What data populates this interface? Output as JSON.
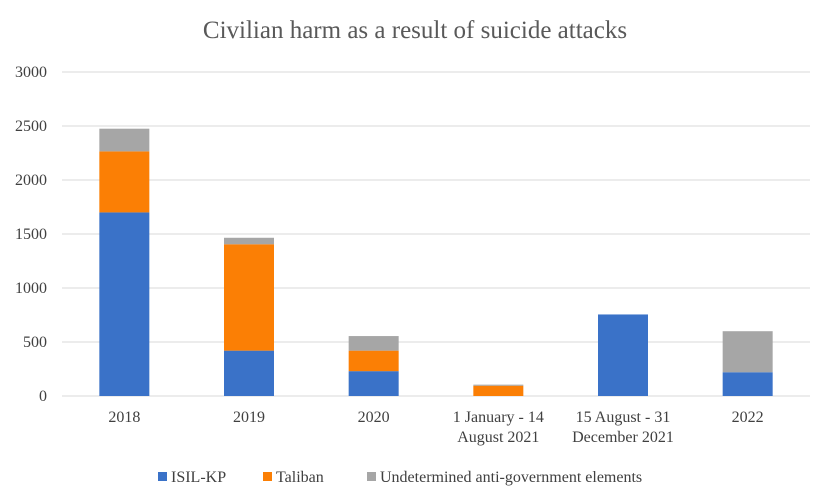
{
  "chart_data": {
    "type": "bar",
    "stacked": true,
    "title": "Civilian harm as a result of suicide attacks",
    "xlabel": "",
    "ylabel": "",
    "ylim": [
      0,
      3000
    ],
    "yticks": [
      0,
      500,
      1000,
      1500,
      2000,
      2500,
      3000
    ],
    "grid": true,
    "legend_position": "bottom",
    "categories": [
      [
        "2018"
      ],
      [
        "2019"
      ],
      [
        "2020"
      ],
      [
        "1 January - 14",
        "August 2021"
      ],
      [
        "15 August - 31",
        "December 2021"
      ],
      [
        "2022"
      ]
    ],
    "series": [
      {
        "name": "ISIL-KP",
        "color": "#3a72c8",
        "values": [
          1700,
          420,
          230,
          0,
          755,
          220
        ]
      },
      {
        "name": "Taliban",
        "color": "#fb7f05",
        "values": [
          565,
          985,
          190,
          95,
          0,
          0
        ]
      },
      {
        "name": "Undetermined anti-government elements",
        "color": "#a6a6a6",
        "values": [
          210,
          60,
          135,
          10,
          0,
          380
        ]
      }
    ]
  }
}
